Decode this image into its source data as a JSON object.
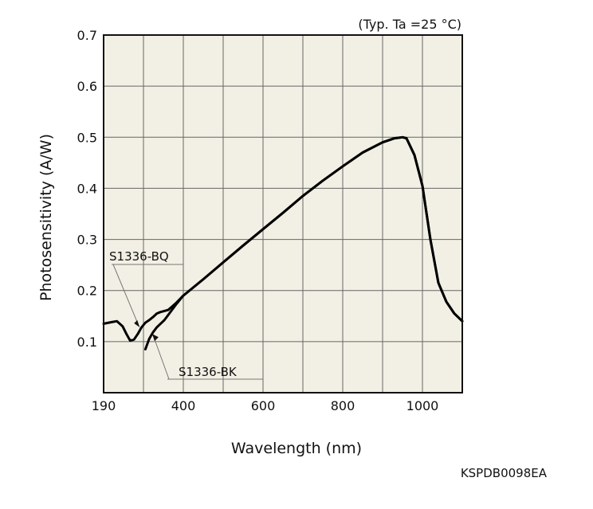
{
  "figure": {
    "condition_note": "(Typ. Ta =25 °C)",
    "code": "KSPDB0098EA"
  },
  "chart_data": {
    "type": "line",
    "xlabel": "Wavelength (nm)",
    "ylabel": "Photosensitivity (A/W)",
    "xlim": [
      190,
      1100
    ],
    "ylim": [
      0,
      0.7
    ],
    "x_ticks": [
      "190",
      "400",
      "600",
      "800",
      "1000"
    ],
    "y_ticks": [
      "0.1",
      "0.2",
      "0.3",
      "0.4",
      "0.5",
      "0.6",
      "0.7"
    ],
    "grid": true,
    "background": "#f2f0e4",
    "annotations": [
      "S1336-BQ",
      "S1336-BK"
    ],
    "series": [
      {
        "name": "S1336-BQ",
        "x": [
          190,
          210,
          225,
          240,
          250,
          260,
          270,
          280,
          290,
          300,
          310,
          320,
          330,
          340,
          350,
          360,
          380,
          400,
          450,
          500,
          550,
          600,
          650,
          700,
          750,
          800,
          850,
          900,
          930,
          950,
          960,
          980,
          1000,
          1020,
          1040,
          1060,
          1080,
          1100
        ],
        "y": [
          0.135,
          0.138,
          0.14,
          0.13,
          0.115,
          0.102,
          0.104,
          0.115,
          0.128,
          0.137,
          0.142,
          0.148,
          0.155,
          0.158,
          0.16,
          0.162,
          0.175,
          0.19,
          0.222,
          0.255,
          0.288,
          0.32,
          0.352,
          0.385,
          0.415,
          0.443,
          0.47,
          0.49,
          0.498,
          0.5,
          0.498,
          0.465,
          0.405,
          0.3,
          0.215,
          0.178,
          0.155,
          0.14
        ]
      },
      {
        "name": "S1336-BK",
        "x": [
          300,
          310,
          320,
          330,
          340,
          350,
          360,
          370,
          380,
          400,
          450,
          500,
          550,
          600,
          650,
          700,
          750,
          800,
          850,
          900,
          930,
          950,
          960,
          980,
          1000,
          1020,
          1040,
          1060,
          1080,
          1100
        ],
        "y": [
          0.085,
          0.105,
          0.118,
          0.128,
          0.135,
          0.142,
          0.152,
          0.162,
          0.172,
          0.19,
          0.222,
          0.255,
          0.288,
          0.32,
          0.352,
          0.385,
          0.415,
          0.443,
          0.47,
          0.49,
          0.498,
          0.5,
          0.498,
          0.465,
          0.405,
          0.3,
          0.215,
          0.178,
          0.155,
          0.14
        ]
      }
    ]
  }
}
